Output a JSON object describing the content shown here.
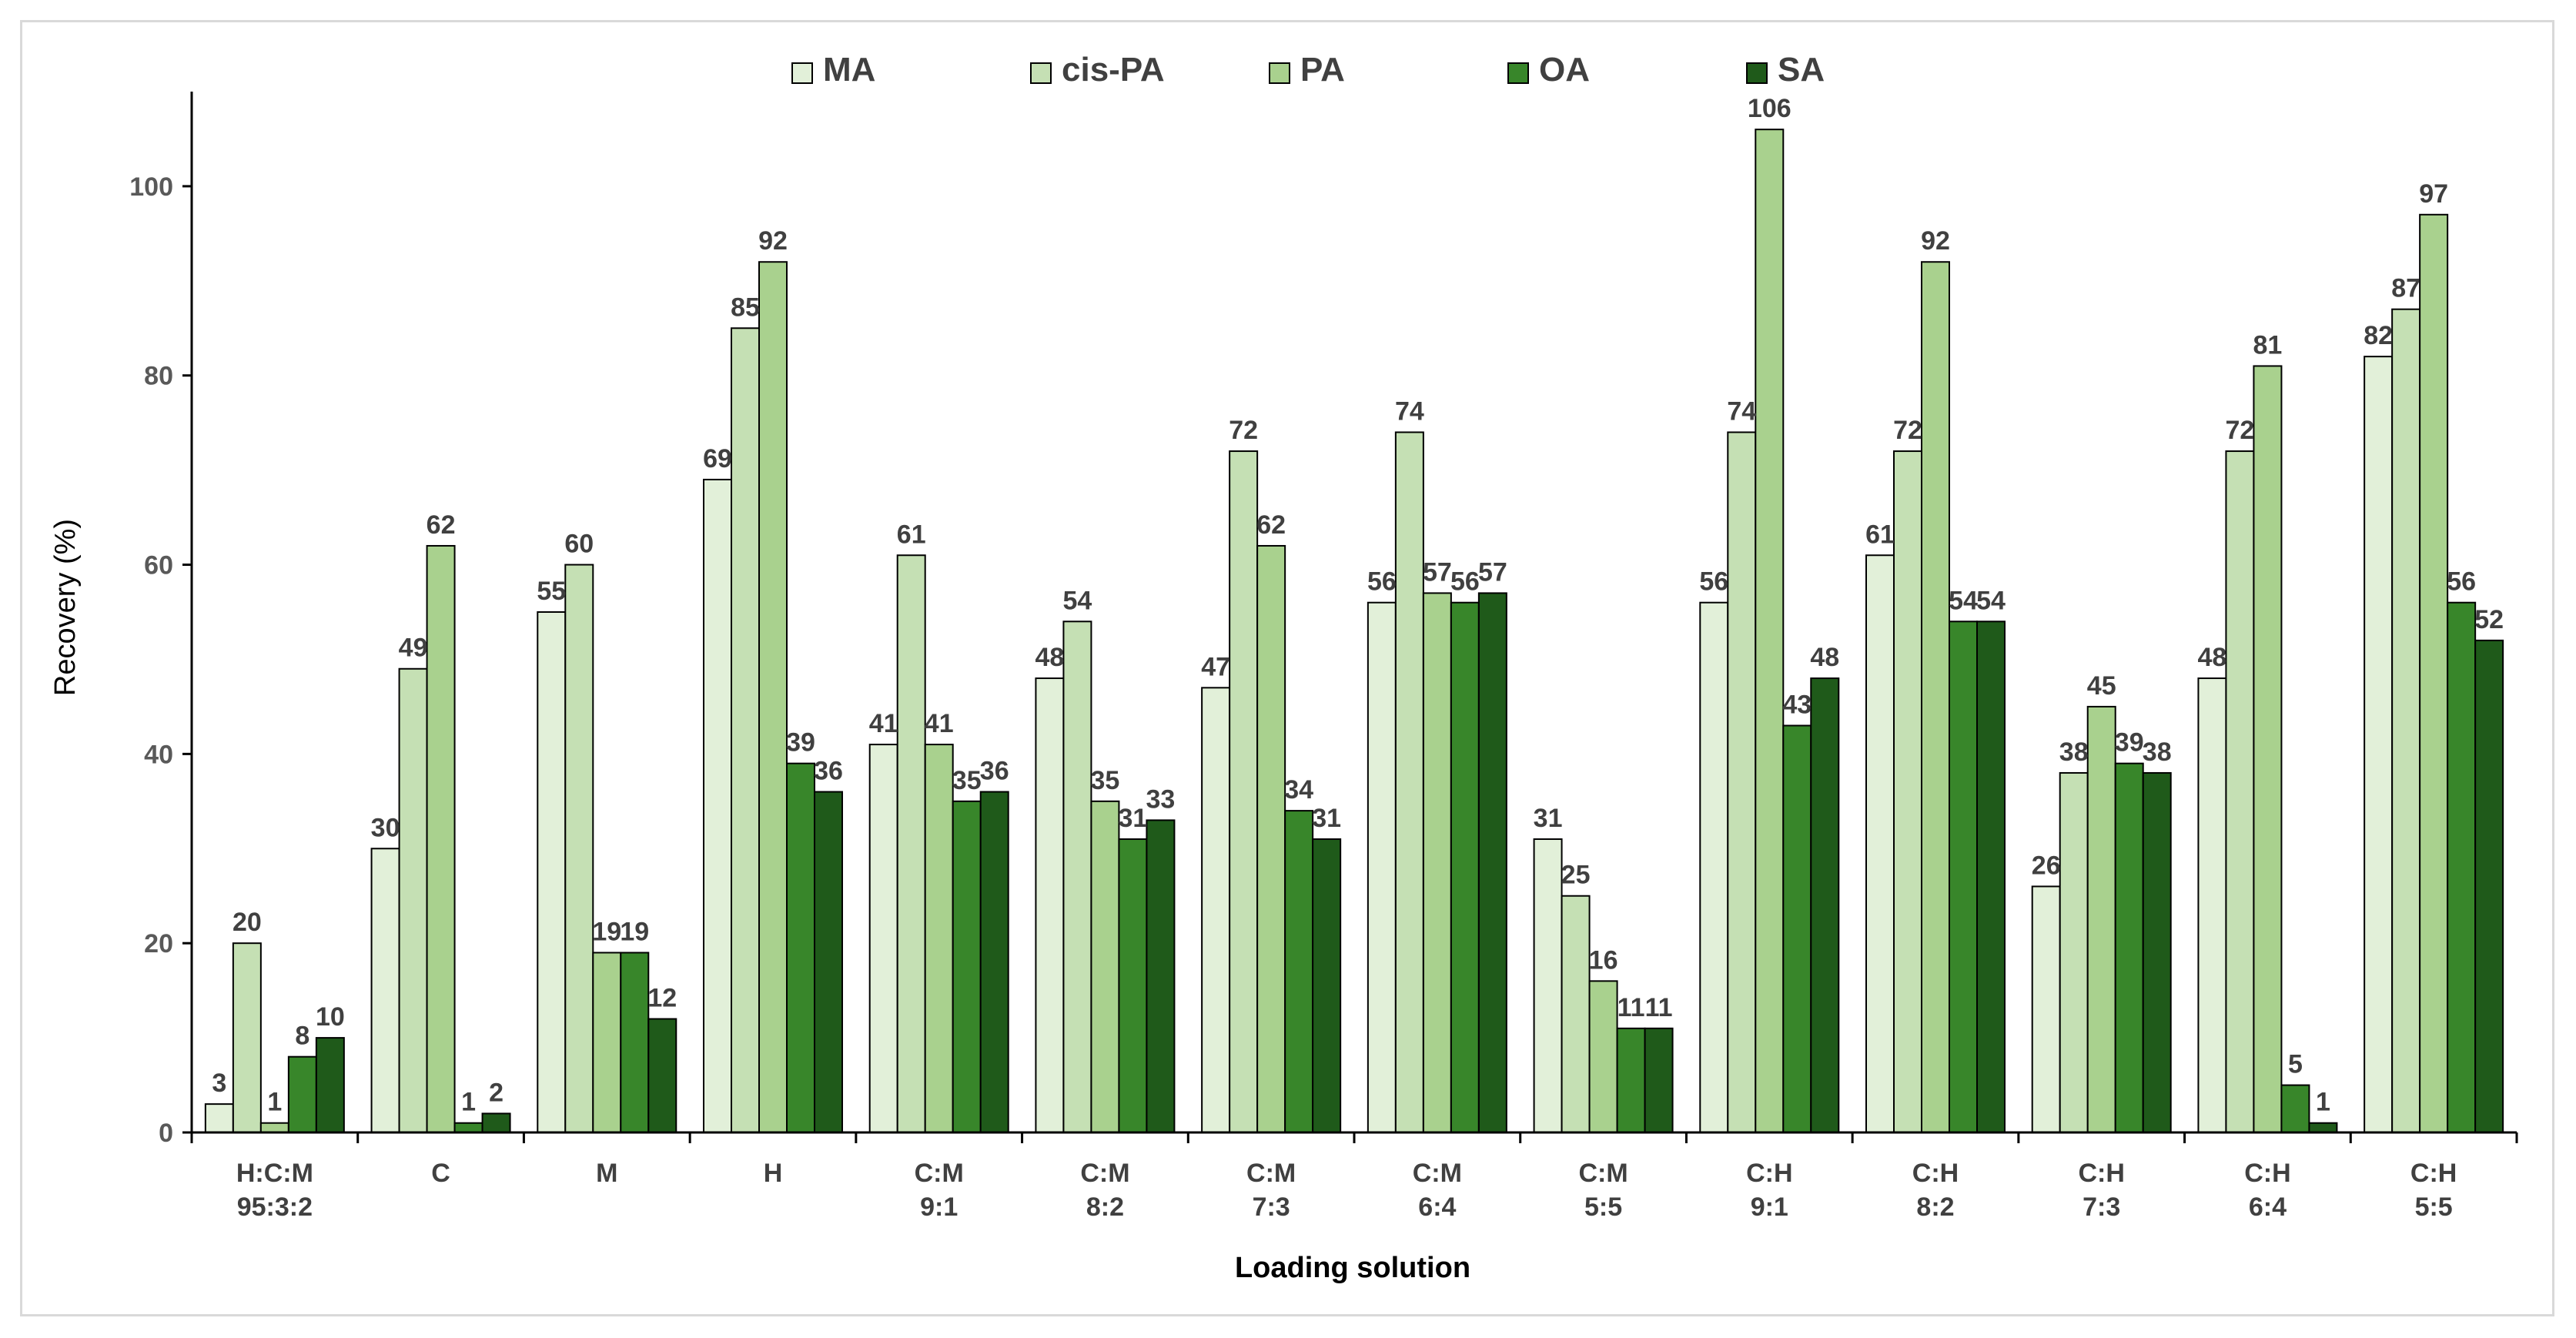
{
  "chart_data": {
    "type": "bar",
    "title": "",
    "xlabel": "Loading solution",
    "ylabel": "Recovery (%)",
    "ylim": [
      0,
      110
    ],
    "yticks": [
      0,
      20,
      40,
      60,
      80,
      100
    ],
    "grid": false,
    "legend_position": "top-center",
    "categories": [
      [
        "H:C:M",
        "95:3:2"
      ],
      [
        "C"
      ],
      [
        "M"
      ],
      [
        "H"
      ],
      [
        "C:M",
        "9:1"
      ],
      [
        "C:M",
        "8:2"
      ],
      [
        "C:M",
        "7:3"
      ],
      [
        "C:M",
        "6:4"
      ],
      [
        "C:M",
        "5:5"
      ],
      [
        "C:H",
        "9:1"
      ],
      [
        "C:H",
        "8:2"
      ],
      [
        "C:H",
        "7:3"
      ],
      [
        "C:H",
        "6:4"
      ],
      [
        "C:H",
        "5:5"
      ]
    ],
    "series": [
      {
        "name": "MA",
        "color": "#e2f0d9",
        "values": [
          3,
          30,
          55,
          69,
          41,
          48,
          47,
          56,
          31,
          56,
          61,
          26,
          48,
          82
        ]
      },
      {
        "name": "cis-PA",
        "color": "#c5e0b4",
        "values": [
          20,
          49,
          60,
          85,
          61,
          54,
          72,
          74,
          25,
          74,
          72,
          38,
          72,
          87
        ]
      },
      {
        "name": "PA",
        "color": "#a9d18e",
        "values": [
          1,
          62,
          19,
          92,
          41,
          35,
          62,
          57,
          16,
          106,
          92,
          45,
          81,
          97
        ]
      },
      {
        "name": "OA",
        "color": "#38862a",
        "values": [
          8,
          1,
          19,
          39,
          35,
          31,
          34,
          56,
          11,
          43,
          54,
          39,
          5,
          56
        ]
      },
      {
        "name": "SA",
        "color": "#1f5a1a",
        "values": [
          10,
          2,
          12,
          36,
          36,
          33,
          31,
          57,
          11,
          48,
          54,
          38,
          1,
          52
        ]
      }
    ]
  }
}
